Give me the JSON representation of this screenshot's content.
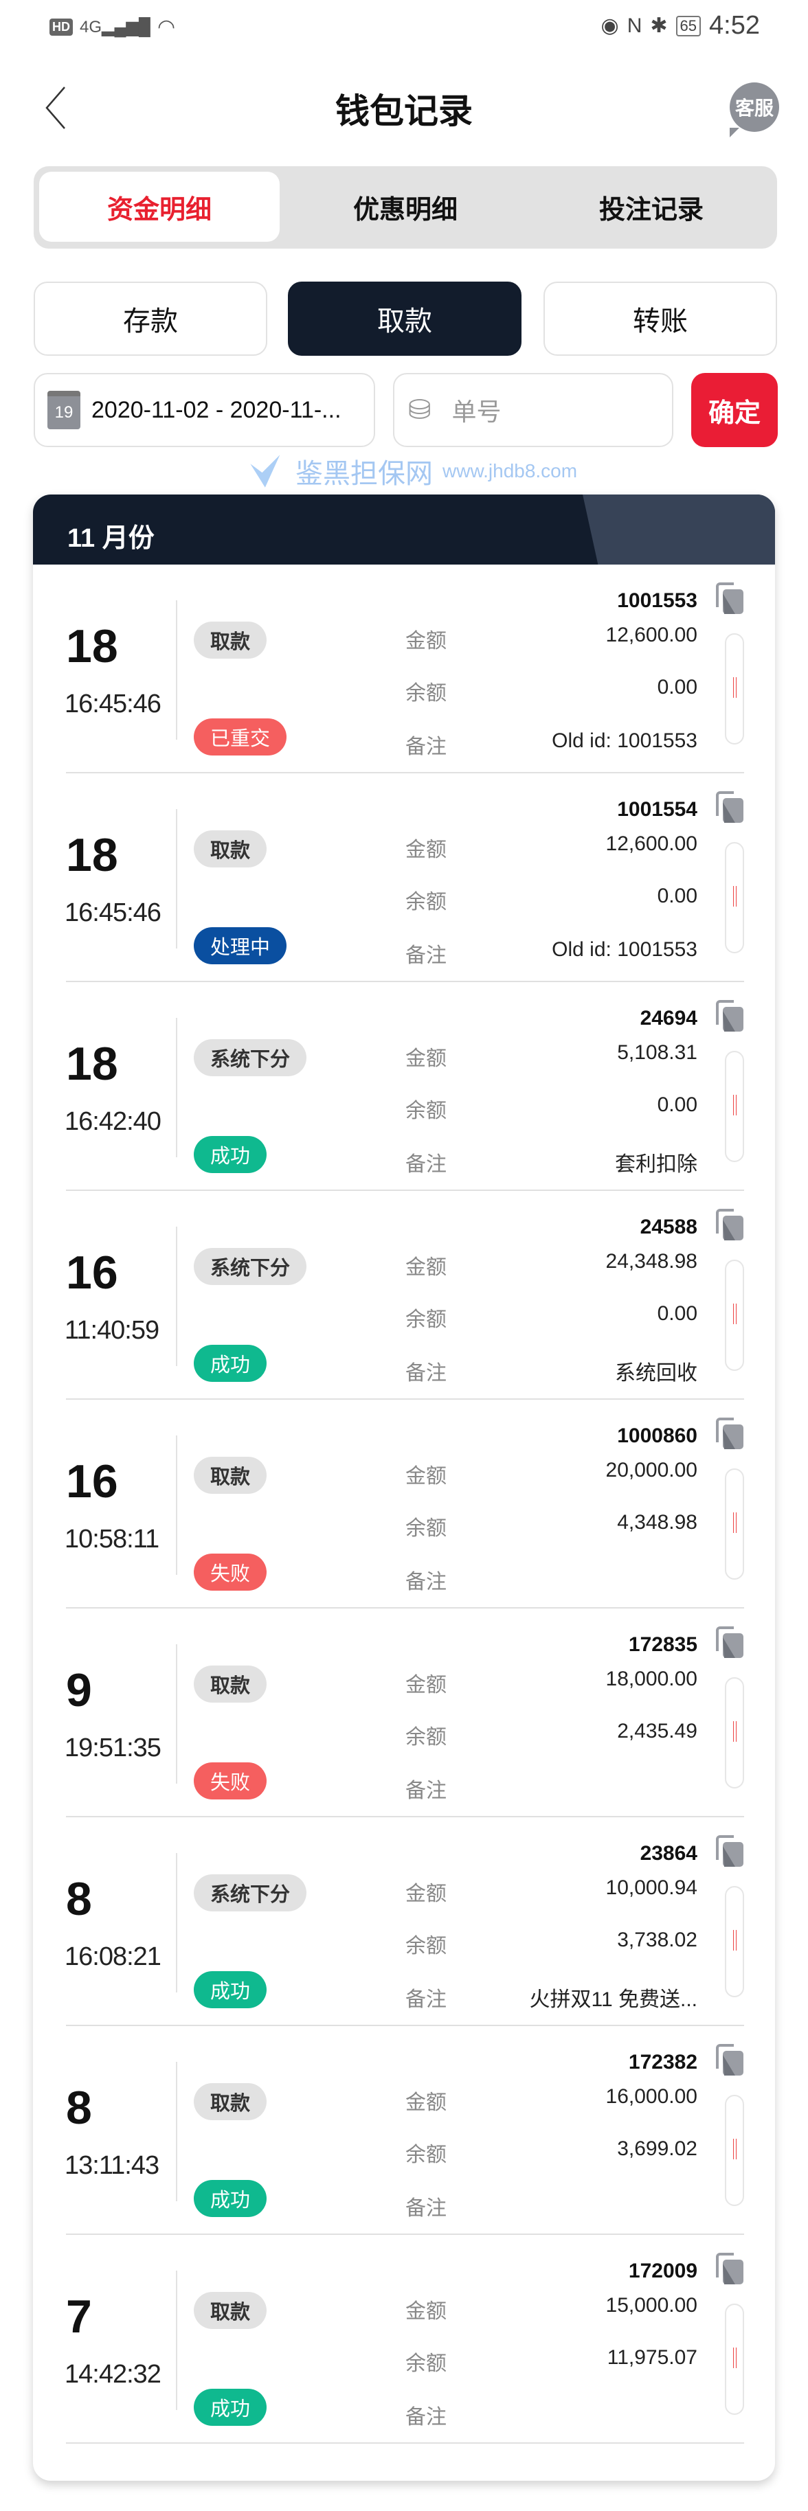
{
  "status_bar": {
    "left": "HD 4G",
    "battery": "65",
    "time": "4:52"
  },
  "header": {
    "title": "钱包记录",
    "service": "客服"
  },
  "tabs": [
    {
      "label": "资金明细",
      "active": true
    },
    {
      "label": "优惠明细"
    },
    {
      "label": "投注记录"
    }
  ],
  "types": [
    {
      "label": "存款"
    },
    {
      "label": "取款",
      "active": true
    },
    {
      "label": "转账"
    }
  ],
  "filter": {
    "date_range": "2020-11-02 - 2020-11-...",
    "calendar_day": "19",
    "order_placeholder": "单号",
    "confirm": "确定"
  },
  "month": "11 月份",
  "labels": {
    "amount": "金额",
    "balance": "余额",
    "remark": "备注"
  },
  "colors": {
    "accent": "#ea1d35",
    "dark": "#121c2c",
    "success": "#0fb98f",
    "fail": "#f55f5f",
    "processing": "#0a4fa0"
  },
  "watermark": {
    "text": "鉴黑担保网",
    "url": "www.jhdb8.com"
  },
  "records": [
    {
      "day": "18",
      "time": "16:45:46",
      "type": "取款",
      "status": "已重交",
      "status_kind": "fail",
      "id": "1001553",
      "amount": "12,600.00",
      "balance": "0.00",
      "remark": "Old id: 1001553"
    },
    {
      "day": "18",
      "time": "16:45:46",
      "type": "取款",
      "status": "处理中",
      "status_kind": "processing",
      "id": "1001554",
      "amount": "12,600.00",
      "balance": "0.00",
      "remark": "Old id: 1001553"
    },
    {
      "day": "18",
      "time": "16:42:40",
      "type": "系统下分",
      "status": "成功",
      "status_kind": "success",
      "id": "24694",
      "amount": "5,108.31",
      "balance": "0.00",
      "remark": "套利扣除"
    },
    {
      "day": "16",
      "time": "11:40:59",
      "type": "系统下分",
      "status": "成功",
      "status_kind": "success",
      "id": "24588",
      "amount": "24,348.98",
      "balance": "0.00",
      "remark": "系统回收"
    },
    {
      "day": "16",
      "time": "10:58:11",
      "type": "取款",
      "status": "失败",
      "status_kind": "fail",
      "id": "1000860",
      "amount": "20,000.00",
      "balance": "4,348.98",
      "remark": ""
    },
    {
      "day": "9",
      "time": "19:51:35",
      "type": "取款",
      "status": "失败",
      "status_kind": "fail",
      "id": "172835",
      "amount": "18,000.00",
      "balance": "2,435.49",
      "remark": ""
    },
    {
      "day": "8",
      "time": "16:08:21",
      "type": "系统下分",
      "status": "成功",
      "status_kind": "success",
      "id": "23864",
      "amount": "10,000.94",
      "balance": "3,738.02",
      "remark": "火拼双11 免费送..."
    },
    {
      "day": "8",
      "time": "13:11:43",
      "type": "取款",
      "status": "成功",
      "status_kind": "success",
      "id": "172382",
      "amount": "16,000.00",
      "balance": "3,699.02",
      "remark": ""
    },
    {
      "day": "7",
      "time": "14:42:32",
      "type": "取款",
      "status": "成功",
      "status_kind": "success",
      "id": "172009",
      "amount": "15,000.00",
      "balance": "11,975.07",
      "remark": ""
    }
  ]
}
